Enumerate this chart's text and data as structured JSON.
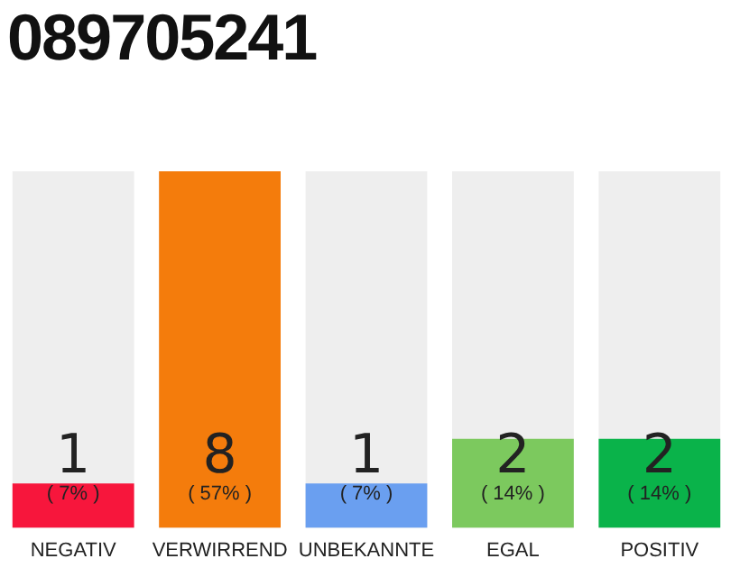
{
  "chart_data": {
    "type": "bar",
    "title": "089705241",
    "categories": [
      "NEGATIV",
      "VERWIRREND",
      "UNBEKANNTE",
      "EGAL",
      "POSITIV"
    ],
    "values": [
      1,
      8,
      1,
      2,
      2
    ],
    "colors": [
      "#f7163c",
      "#f47c0c",
      "#6a9ff0",
      "#7cc95e",
      "#0ab34a"
    ],
    "value_labels": [
      "1",
      "8",
      "1",
      "2",
      "2"
    ],
    "annotations": [
      "( 7% )",
      "( 57% )",
      "( 7% )",
      "( 14% )",
      "( 14% )"
    ],
    "tick_labels": "x",
    "grid": false,
    "legend": false
  }
}
